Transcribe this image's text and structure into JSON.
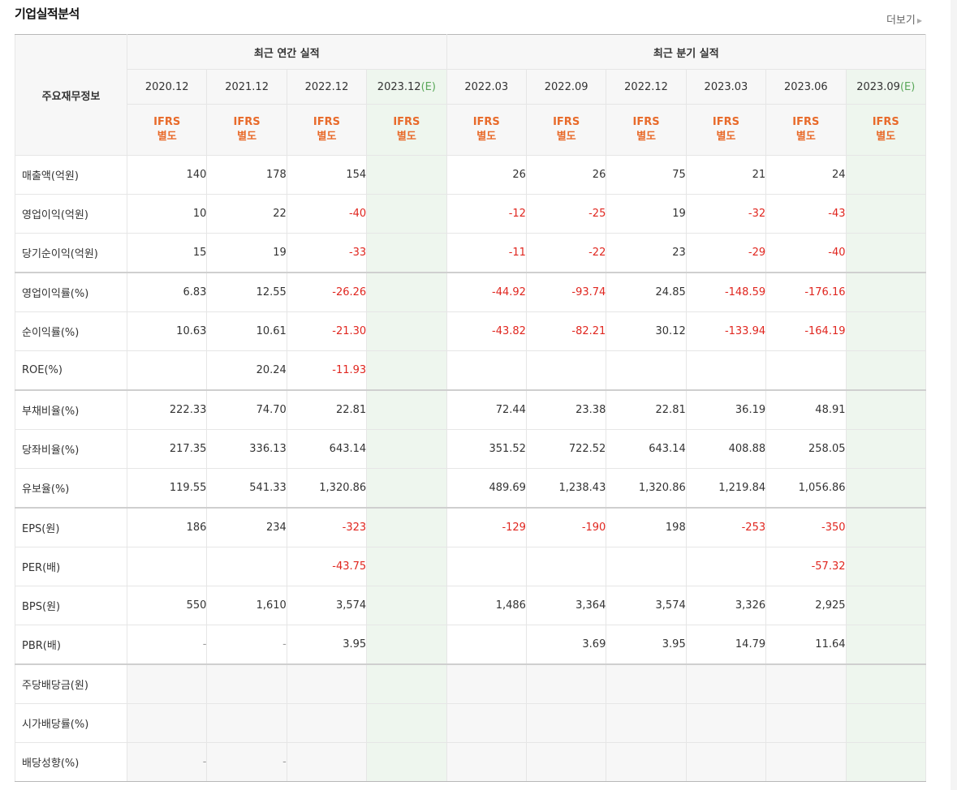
{
  "header": {
    "title": "기업실적분석",
    "more_label": "더보기"
  },
  "table": {
    "corner_label": "주요재무정보",
    "annual_label": "최근 연간 실적",
    "quarter_label": "최근 분기 실적",
    "annual_periods": [
      {
        "year": "2020.12",
        "est": ""
      },
      {
        "year": "2021.12",
        "est": ""
      },
      {
        "year": "2022.12",
        "est": ""
      },
      {
        "year": "2023.12",
        "est": "(E)"
      }
    ],
    "quarter_periods": [
      {
        "year": "2022.03",
        "est": ""
      },
      {
        "year": "2022.09",
        "est": ""
      },
      {
        "year": "2022.12",
        "est": ""
      },
      {
        "year": "2023.03",
        "est": ""
      },
      {
        "year": "2023.06",
        "est": ""
      },
      {
        "year": "2023.09",
        "est": "(E)"
      }
    ],
    "basis_line1": "IFRS",
    "basis_line2": "별도",
    "rows": [
      {
        "label": "매출액(억원)",
        "values": [
          "140",
          "178",
          "154",
          "",
          "26",
          "26",
          "75",
          "21",
          "24",
          ""
        ]
      },
      {
        "label": "영업이익(억원)",
        "values": [
          "10",
          "22",
          "-40",
          "",
          "-12",
          "-25",
          "19",
          "-32",
          "-43",
          ""
        ]
      },
      {
        "label": "당기순이익(억원)",
        "values": [
          "15",
          "19",
          "-33",
          "",
          "-11",
          "-22",
          "23",
          "-29",
          "-40",
          ""
        ]
      },
      {
        "label": "영업이익률(%)",
        "values": [
          "6.83",
          "12.55",
          "-26.26",
          "",
          "-44.92",
          "-93.74",
          "24.85",
          "-148.59",
          "-176.16",
          ""
        ]
      },
      {
        "label": "순이익률(%)",
        "values": [
          "10.63",
          "10.61",
          "-21.30",
          "",
          "-43.82",
          "-82.21",
          "30.12",
          "-133.94",
          "-164.19",
          ""
        ]
      },
      {
        "label": "ROE(%)",
        "values": [
          "",
          "20.24",
          "-11.93",
          "",
          "",
          "",
          "",
          "",
          "",
          ""
        ]
      },
      {
        "label": "부채비율(%)",
        "values": [
          "222.33",
          "74.70",
          "22.81",
          "",
          "72.44",
          "23.38",
          "22.81",
          "36.19",
          "48.91",
          ""
        ]
      },
      {
        "label": "당좌비율(%)",
        "values": [
          "217.35",
          "336.13",
          "643.14",
          "",
          "351.52",
          "722.52",
          "643.14",
          "408.88",
          "258.05",
          ""
        ]
      },
      {
        "label": "유보율(%)",
        "values": [
          "119.55",
          "541.33",
          "1,320.86",
          "",
          "489.69",
          "1,238.43",
          "1,320.86",
          "1,219.84",
          "1,056.86",
          ""
        ]
      },
      {
        "label": "EPS(원)",
        "values": [
          "186",
          "234",
          "-323",
          "",
          "-129",
          "-190",
          "198",
          "-253",
          "-350",
          ""
        ]
      },
      {
        "label": "PER(배)",
        "values": [
          "",
          "",
          "-43.75",
          "",
          "",
          "",
          "",
          "",
          "-57.32",
          ""
        ]
      },
      {
        "label": "BPS(원)",
        "values": [
          "550",
          "1,610",
          "3,574",
          "",
          "1,486",
          "3,364",
          "3,574",
          "3,326",
          "2,925",
          ""
        ]
      },
      {
        "label": "PBR(배)",
        "values": [
          "-",
          "-",
          "3.95",
          "",
          "",
          "3.69",
          "3.95",
          "14.79",
          "11.64",
          ""
        ]
      },
      {
        "label": "주당배당금(원)",
        "values": [
          "",
          "",
          "",
          "",
          "",
          "",
          "",
          "",
          "",
          ""
        ]
      },
      {
        "label": "시가배당률(%)",
        "values": [
          "",
          "",
          "",
          "",
          "",
          "",
          "",
          "",
          "",
          ""
        ]
      },
      {
        "label": "배당성향(%)",
        "values": [
          "-",
          "-",
          "",
          "",
          "",
          "",
          "",
          "",
          "",
          ""
        ]
      }
    ]
  }
}
